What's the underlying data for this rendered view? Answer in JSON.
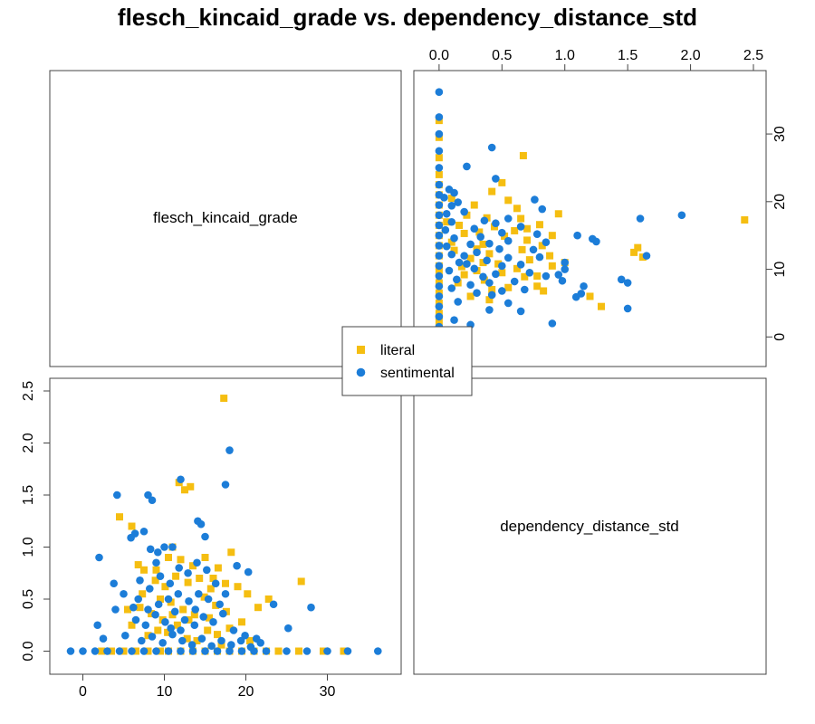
{
  "chart_data": {
    "type": "scatter",
    "title": "flesch_kincaid_grade vs. dependency_distance_std",
    "variables": [
      "flesch_kincaid_grade",
      "dependency_distance_std"
    ],
    "x_label": "flesch_kincaid_grade",
    "y_label": "dependency_distance_std",
    "x_range": [
      -2.5,
      37.5
    ],
    "y_range": [
      -0.1,
      2.5
    ],
    "x_ticks": [
      0,
      10,
      20,
      30
    ],
    "y_ticks": [
      0.0,
      0.5,
      1.0,
      1.5,
      2.0,
      2.5
    ],
    "x_tick_labels": [
      "0",
      "10",
      "20",
      "30"
    ],
    "y_tick_labels": [
      "0.0",
      "0.5",
      "1.0",
      "1.5",
      "2.0",
      "2.5"
    ],
    "legend_position": "center",
    "grid": false,
    "series": [
      {
        "name": "literal",
        "color": "#F5BE11",
        "marker": "square",
        "points": [
          [
            2.3,
            0.0
          ],
          [
            3.5,
            0.0
          ],
          [
            5,
            0.0
          ],
          [
            6.5,
            0.0
          ],
          [
            8,
            0.0
          ],
          [
            9.5,
            0.0
          ],
          [
            10.5,
            0.0
          ],
          [
            12,
            0.0
          ],
          [
            13.5,
            0.0
          ],
          [
            15,
            0.0
          ],
          [
            16.5,
            0.0
          ],
          [
            18,
            0.0
          ],
          [
            19.5,
            0.0
          ],
          [
            21,
            0.0
          ],
          [
            22.5,
            0.0
          ],
          [
            24,
            0.0
          ],
          [
            26.5,
            0.0
          ],
          [
            29.5,
            0.0
          ],
          [
            32,
            0.0
          ],
          [
            17.3,
            2.43
          ],
          [
            11.8,
            1.62
          ],
          [
            13.2,
            1.58
          ],
          [
            12.5,
            1.55
          ],
          [
            4.5,
            1.29
          ],
          [
            6.0,
            1.2
          ],
          [
            11.0,
            1.0
          ],
          [
            18.2,
            0.95
          ],
          [
            16.6,
            0.8
          ],
          [
            19.0,
            0.62
          ],
          [
            26.8,
            0.67
          ],
          [
            20.2,
            0.55
          ],
          [
            6.8,
            0.83
          ],
          [
            7.5,
            0.78
          ],
          [
            9.0,
            0.78
          ],
          [
            10.5,
            0.9
          ],
          [
            12.0,
            0.88
          ],
          [
            13.5,
            0.82
          ],
          [
            15.0,
            0.9
          ],
          [
            16.0,
            0.7
          ],
          [
            17.5,
            0.65
          ],
          [
            7.0,
            0.42
          ],
          [
            8.4,
            0.36
          ],
          [
            9.5,
            0.5
          ],
          [
            10.8,
            0.47
          ],
          [
            12.3,
            0.4
          ],
          [
            13.7,
            0.35
          ],
          [
            14.9,
            0.52
          ],
          [
            16.3,
            0.44
          ],
          [
            17.6,
            0.38
          ],
          [
            8.0,
            0.15
          ],
          [
            9.2,
            0.2
          ],
          [
            10.4,
            0.18
          ],
          [
            11.6,
            0.25
          ],
          [
            12.8,
            0.12
          ],
          [
            14.0,
            0.1
          ],
          [
            15.3,
            0.2
          ],
          [
            16.5,
            0.16
          ],
          [
            18.0,
            0.22
          ],
          [
            19.5,
            0.28
          ],
          [
            21.5,
            0.42
          ],
          [
            22.8,
            0.5
          ],
          [
            6.0,
            0.25
          ],
          [
            7.3,
            0.55
          ],
          [
            8.9,
            0.68
          ],
          [
            10.1,
            0.62
          ],
          [
            11.4,
            0.72
          ],
          [
            12.9,
            0.66
          ],
          [
            14.3,
            0.7
          ],
          [
            15.7,
            0.6
          ],
          [
            13.0,
            0.3
          ],
          [
            11.0,
            0.35
          ],
          [
            9.8,
            0.3
          ],
          [
            15.5,
            0.32
          ],
          [
            20.5,
            0.1
          ],
          [
            17.0,
            0.06
          ],
          [
            5.5,
            0.4
          ]
        ]
      },
      {
        "name": "sentimental",
        "color": "#1C7DD8",
        "marker": "circle",
        "points": [
          [
            -1.5,
            0.0
          ],
          [
            0,
            0.0
          ],
          [
            1.5,
            0.0
          ],
          [
            3,
            0.0
          ],
          [
            4.5,
            0.0
          ],
          [
            6,
            0.0
          ],
          [
            7.5,
            0.0
          ],
          [
            9,
            0.0
          ],
          [
            10.5,
            0.0
          ],
          [
            12,
            0.0
          ],
          [
            13.5,
            0.0
          ],
          [
            15,
            0.0
          ],
          [
            16.5,
            0.0
          ],
          [
            18,
            0.0
          ],
          [
            19.5,
            0.0
          ],
          [
            21,
            0.0
          ],
          [
            22.5,
            0.0
          ],
          [
            25,
            0.0
          ],
          [
            27.5,
            0.0
          ],
          [
            30,
            0.0
          ],
          [
            32.5,
            0.0
          ],
          [
            36.2,
            0.0
          ],
          [
            18.0,
            1.93
          ],
          [
            17.5,
            1.6
          ],
          [
            12.0,
            1.65
          ],
          [
            4.2,
            1.5
          ],
          [
            8.0,
            1.5
          ],
          [
            8.5,
            1.45
          ],
          [
            14.1,
            1.25
          ],
          [
            14.5,
            1.22
          ],
          [
            6.4,
            1.13
          ],
          [
            5.9,
            1.09
          ],
          [
            7.5,
            1.15
          ],
          [
            10.0,
            1.0
          ],
          [
            11.0,
            1.0
          ],
          [
            8.3,
            0.98
          ],
          [
            9.2,
            0.95
          ],
          [
            2.0,
            0.9
          ],
          [
            3.8,
            0.65
          ],
          [
            1.8,
            0.25
          ],
          [
            2.5,
            0.12
          ],
          [
            4.0,
            0.4
          ],
          [
            5.0,
            0.55
          ],
          [
            6.2,
            0.42
          ],
          [
            7.0,
            0.68
          ],
          [
            8.2,
            0.6
          ],
          [
            9.5,
            0.72
          ],
          [
            10.7,
            0.65
          ],
          [
            11.8,
            0.8
          ],
          [
            12.9,
            0.75
          ],
          [
            14.0,
            0.85
          ],
          [
            15.2,
            0.78
          ],
          [
            16.3,
            0.65
          ],
          [
            17.5,
            0.55
          ],
          [
            18.9,
            0.82
          ],
          [
            20.3,
            0.76
          ],
          [
            6.5,
            0.3
          ],
          [
            7.7,
            0.25
          ],
          [
            8.9,
            0.35
          ],
          [
            10.1,
            0.28
          ],
          [
            11.3,
            0.38
          ],
          [
            12.5,
            0.3
          ],
          [
            13.7,
            0.25
          ],
          [
            14.8,
            0.33
          ],
          [
            16.0,
            0.28
          ],
          [
            17.2,
            0.36
          ],
          [
            18.5,
            0.2
          ],
          [
            19.9,
            0.15
          ],
          [
            21.3,
            0.12
          ],
          [
            23.4,
            0.45
          ],
          [
            28.0,
            0.42
          ],
          [
            25.2,
            0.22
          ],
          [
            7.2,
            0.1
          ],
          [
            8.5,
            0.14
          ],
          [
            9.8,
            0.08
          ],
          [
            11.0,
            0.16
          ],
          [
            12.2,
            0.1
          ],
          [
            13.4,
            0.06
          ],
          [
            14.6,
            0.12
          ],
          [
            15.8,
            0.05
          ],
          [
            17.0,
            0.1
          ],
          [
            18.2,
            0.06
          ],
          [
            19.4,
            0.1
          ],
          [
            20.6,
            0.04
          ],
          [
            21.8,
            0.08
          ],
          [
            5.2,
            0.15
          ],
          [
            6.8,
            0.5
          ],
          [
            9.3,
            0.45
          ],
          [
            10.5,
            0.5
          ],
          [
            11.7,
            0.55
          ],
          [
            13.0,
            0.48
          ],
          [
            14.2,
            0.55
          ],
          [
            15.4,
            0.5
          ],
          [
            12.0,
            0.2
          ],
          [
            10.8,
            0.22
          ],
          [
            13.8,
            0.4
          ],
          [
            8.0,
            0.4
          ],
          [
            16.8,
            0.45
          ],
          [
            15.0,
            1.1
          ],
          [
            9.0,
            0.85
          ]
        ]
      }
    ]
  }
}
